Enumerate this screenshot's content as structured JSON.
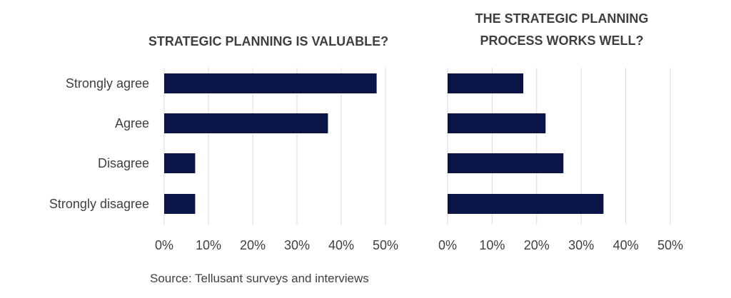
{
  "chart_data": [
    {
      "type": "bar",
      "orientation": "horizontal",
      "title": "STRATEGIC PLANNING IS VALUABLE?",
      "categories": [
        "Strongly agree",
        "Agree",
        "Disagree",
        "Strongly disagree"
      ],
      "values": [
        48,
        37,
        7,
        7
      ],
      "xlim": [
        0,
        50
      ],
      "ticks": [
        "0%",
        "10%",
        "20%",
        "30%",
        "40%",
        "50%"
      ],
      "grid": true,
      "bar_color": "#0b1446"
    },
    {
      "type": "bar",
      "orientation": "horizontal",
      "title": [
        "THE STRATEGIC PLANNING",
        "PROCESS WORKS WELL?"
      ],
      "categories": [
        "Strongly agree",
        "Agree",
        "Disagree",
        "Strongly disagree"
      ],
      "values": [
        17,
        22,
        26,
        35
      ],
      "xlim": [
        0,
        50
      ],
      "ticks": [
        "0%",
        "10%",
        "20%",
        "30%",
        "40%",
        "50%"
      ],
      "grid": true,
      "bar_color": "#0b1446"
    }
  ],
  "source": "Source: Tellusant surveys and interviews"
}
